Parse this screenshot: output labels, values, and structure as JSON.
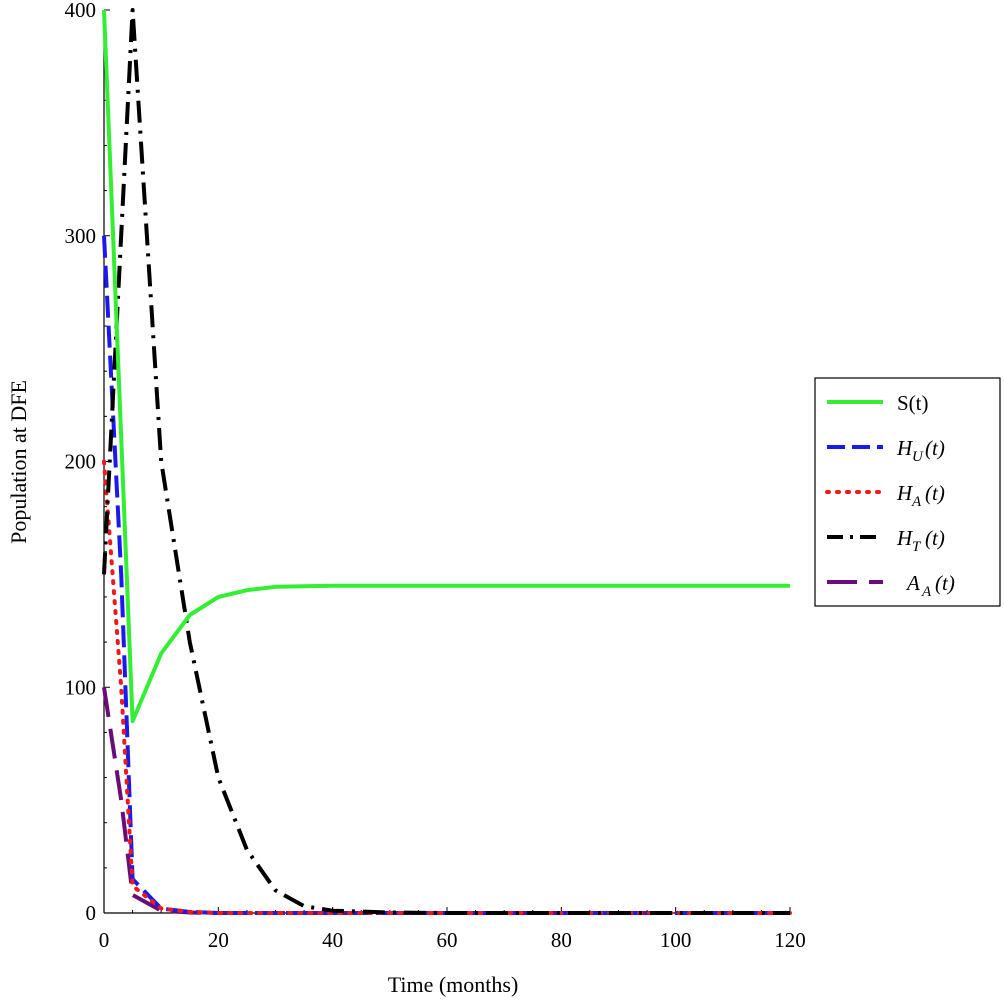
{
  "chart_data": {
    "type": "line",
    "xlabel": "Time (months)",
    "ylabel": "Population at DFE",
    "xlim": [
      0,
      120
    ],
    "ylim": [
      0,
      400
    ],
    "xticks": [
      0,
      20,
      40,
      60,
      80,
      100,
      120
    ],
    "yticks": [
      0,
      100,
      200,
      300,
      400
    ],
    "grid": false,
    "legend_position": "right",
    "series": [
      {
        "name": "S(t)",
        "label_main": "S(t)",
        "label_sub": "",
        "label_tail": "",
        "color": "#33ee33",
        "style": "solid",
        "x": [
          0,
          5,
          10,
          15,
          20,
          25,
          30,
          40,
          60,
          80,
          100,
          120
        ],
        "y": [
          400,
          85,
          115,
          132,
          140,
          143,
          144.5,
          145,
          145,
          145,
          145,
          145
        ]
      },
      {
        "name": "H_U(t)",
        "label_main": "H",
        "label_sub": "U",
        "label_tail": "(t)",
        "color": "#1a1aee",
        "style": "dash",
        "x": [
          0,
          3,
          5,
          10,
          15,
          20,
          40,
          60,
          80,
          100,
          120
        ],
        "y": [
          300,
          150,
          15,
          2,
          0.5,
          0,
          0,
          0,
          0,
          0,
          0
        ]
      },
      {
        "name": "H_A(t)",
        "label_main": "H",
        "label_sub": "A",
        "label_tail": "(t)",
        "color": "#ee1a1a",
        "style": "dot",
        "x": [
          0,
          3,
          5,
          10,
          15,
          20,
          40,
          60,
          80,
          100,
          120
        ],
        "y": [
          200,
          100,
          12,
          2,
          0.5,
          0,
          0,
          0,
          0,
          0,
          0
        ]
      },
      {
        "name": "H_T(t)",
        "label_main": "H",
        "label_sub": "T",
        "label_tail": "(t)",
        "color": "#000000",
        "style": "dashdot",
        "x": [
          0,
          5,
          10,
          15,
          20,
          25,
          30,
          35,
          40,
          50,
          60,
          80,
          100,
          120
        ],
        "y": [
          150,
          400,
          200,
          120,
          60,
          28,
          10,
          3,
          1,
          0.2,
          0,
          0,
          0,
          0
        ]
      },
      {
        "name": "A_A(t)",
        "label_main": "A",
        "label_sub": "A",
        "label_tail": "(t)",
        "color": "#6a0d7a",
        "style": "longdash",
        "x": [
          0,
          3,
          5,
          10,
          15,
          20,
          40,
          60,
          80,
          100,
          120
        ],
        "y": [
          100,
          50,
          8,
          1,
          0.2,
          0,
          0,
          0,
          0,
          0,
          0
        ]
      }
    ]
  }
}
